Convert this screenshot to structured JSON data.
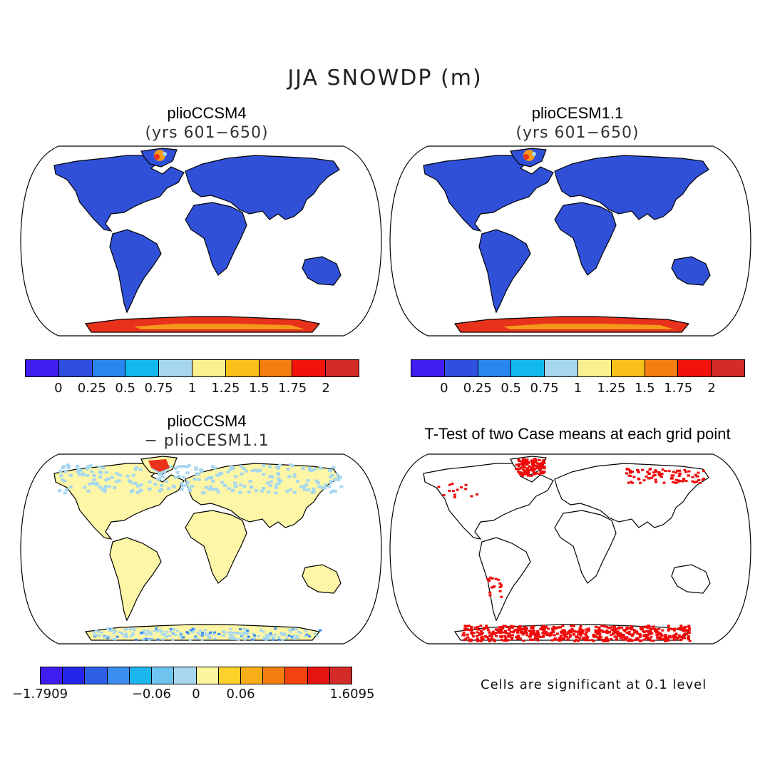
{
  "title": "JJA SNOWDP (m)",
  "panels": [
    {
      "title": "plioCCSM4",
      "subtitle": "(yrs 601−650)"
    },
    {
      "title": "plioCESM1.1",
      "subtitle": "(yrs 601−650)"
    },
    {
      "title": "plioCCSM4",
      "subtitle": "− plioCESM1.1"
    },
    {
      "title": "T-Test of two Case means at each grid point",
      "subtitle": ""
    }
  ],
  "colorbar_top": {
    "colors": [
      "#3f1df0",
      "#2f4fe0",
      "#2a86ef",
      "#12b9ef",
      "#a6d7ef",
      "#fbf08f",
      "#f9bf1a",
      "#f57e12",
      "#f2120c",
      "#d22b28"
    ],
    "labels": [
      "0",
      "0.25",
      "0.5",
      "0.75",
      "1",
      "1.25",
      "1.5",
      "1.75",
      "2"
    ]
  },
  "colorbar_diff": {
    "colors": [
      "#3f1df0",
      "#2226e8",
      "#2d5fe6",
      "#3b8ef0",
      "#1cb6ef",
      "#6ec4ef",
      "#a6d7ef",
      "#fdf6a0",
      "#fbd12a",
      "#f9ad16",
      "#f57e12",
      "#f2420e",
      "#e61410",
      "#d22b28"
    ],
    "labels": [
      "−1.7909",
      "−0.06",
      "0",
      "0.06",
      "1.6095"
    ]
  },
  "ttest_note": "Cells are significant at 0.1 level",
  "colors": {
    "land_blue": "#3050d8",
    "antarctic_red": "#e8321c",
    "antarctic_orange": "#f39a18",
    "diff_land": "#fdf6a6",
    "diff_light_blue": "#a6d7ef",
    "sig_red": "#f00808"
  }
}
